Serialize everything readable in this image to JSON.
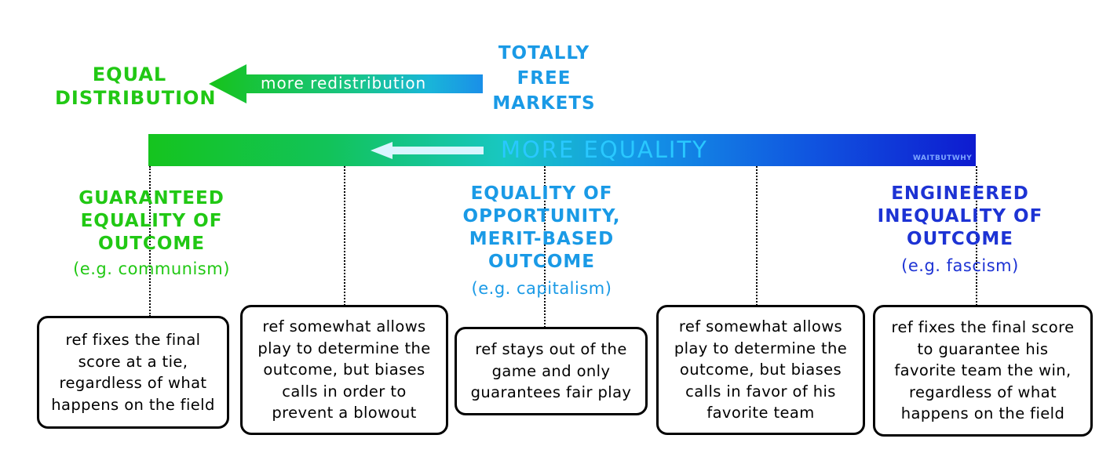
{
  "colors": {
    "green": "#21c814",
    "light_blue": "#1a9ae6",
    "dark_blue": "#1d33d4",
    "gradient_start": "#15c41e",
    "gradient_end": "#0e1bd0"
  },
  "top": {
    "left_label": [
      "EQUAL",
      "DISTRIBUTION"
    ],
    "arrow_label": "more redistribution",
    "right_label": [
      "TOTALLY",
      "FREE",
      "MARKETS"
    ]
  },
  "bar": {
    "label": "MORE EQUALITY",
    "watermark": "WAITBUTWHY"
  },
  "categories": [
    {
      "heading": [
        "GUARANTEED",
        "EQUALITY OF",
        "OUTCOME"
      ],
      "example": "(e.g. communism)"
    },
    {
      "heading": [
        "EQUALITY OF",
        "OPPORTUNITY,",
        "MERIT-BASED",
        "OUTCOME"
      ],
      "example": "(e.g. capitalism)"
    },
    {
      "heading": [
        "ENGINEERED",
        "INEQUALITY OF",
        "OUTCOME"
      ],
      "example": "(e.g. fascism)"
    }
  ],
  "boxes": [
    [
      "ref fixes the final",
      "score at a tie,",
      "regardless of what",
      "happens on the field"
    ],
    [
      "ref somewhat allows",
      "play to determine the",
      "outcome, but biases",
      "calls in order to",
      "prevent a blowout"
    ],
    [
      "ref stays out of the",
      "game and only",
      "guarantees fair play"
    ],
    [
      "ref somewhat allows",
      "play to determine the",
      "outcome, but biases",
      "calls in favor of his",
      "favorite team"
    ],
    [
      "ref fixes the final score",
      "to guarantee his",
      "favorite team the win,",
      "regardless of what",
      "happens on the field"
    ]
  ]
}
